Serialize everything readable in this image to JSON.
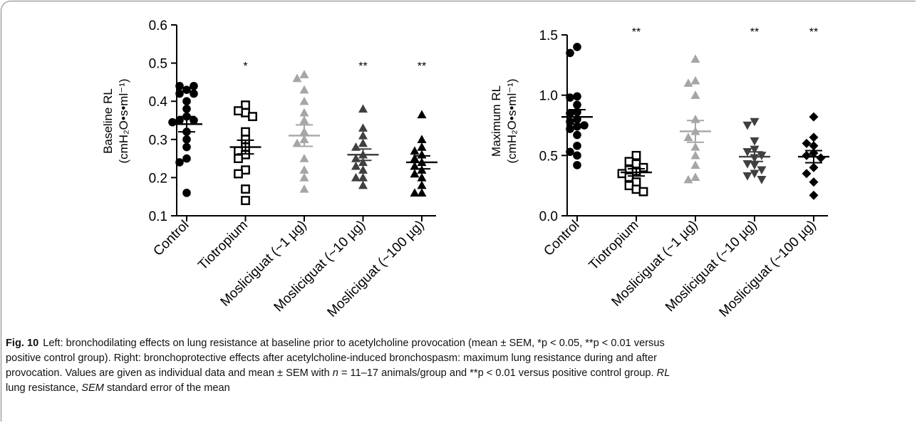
{
  "chart_data": [
    {
      "type": "scatter",
      "panel": "left",
      "ylabel_line1": "Baseline RL",
      "ylabel_line2": "(cmH₂O•s•ml⁻¹)",
      "ylim": [
        0.1,
        0.6
      ],
      "yticks": [
        "0.1",
        "0.2",
        "0.3",
        "0.4",
        "0.5",
        "0.6"
      ],
      "categories": [
        "Control",
        "Tiotropium",
        "Mosliciguat (~1 µg)",
        "Mosliciguat (~10 µg)",
        "Mosliciguat (~100 µg)"
      ],
      "series": [
        {
          "marker": "circle",
          "color": "#000000",
          "values": [
            0.43,
            0.44,
            0.44,
            0.42,
            0.42,
            0.4,
            0.38,
            0.36,
            0.35,
            0.35,
            0.345,
            0.32,
            0.3,
            0.28,
            0.25,
            0.24,
            0.16
          ],
          "mean": 0.34,
          "sem": 0.02,
          "significance": ""
        },
        {
          "marker": "square",
          "color": "#000000",
          "values": [
            0.39,
            0.37,
            0.375,
            0.36,
            0.32,
            0.3,
            0.28,
            0.27,
            0.26,
            0.25,
            0.22,
            0.21,
            0.17,
            0.14
          ],
          "mean": 0.28,
          "sem": 0.018,
          "significance": "*"
        },
        {
          "marker": "triangle-up",
          "color": "#a6a6a6",
          "values": [
            0.47,
            0.46,
            0.43,
            0.4,
            0.37,
            0.35,
            0.32,
            0.3,
            0.29,
            0.25,
            0.22,
            0.2,
            0.17
          ],
          "mean": 0.31,
          "sem": 0.028,
          "significance": ""
        },
        {
          "marker": "triangle-up",
          "color": "#404040",
          "values": [
            0.38,
            0.33,
            0.31,
            0.29,
            0.28,
            0.26,
            0.25,
            0.24,
            0.23,
            0.22,
            0.2,
            0.2,
            0.18
          ],
          "mean": 0.26,
          "sem": 0.015,
          "significance": "**"
        },
        {
          "marker": "triangle-up",
          "color": "#000000",
          "values": [
            0.365,
            0.3,
            0.28,
            0.27,
            0.26,
            0.25,
            0.24,
            0.23,
            0.22,
            0.21,
            0.2,
            0.18,
            0.16,
            0.16
          ],
          "mean": 0.24,
          "sem": 0.017,
          "significance": "**"
        }
      ]
    },
    {
      "type": "scatter",
      "panel": "right",
      "ylabel_line1": "Maximum RL",
      "ylabel_line2": "(cmH₂O•s•ml⁻¹)",
      "ylim": [
        0.0,
        1.5
      ],
      "yticks": [
        "0.0",
        "0.5",
        "1.0",
        "1.5"
      ],
      "categories": [
        "Control",
        "Tiotropium",
        "Mosliciguat (~1 µg)",
        "Mosliciguat (~10 µg)",
        "Mosliciguat (~100 µg)"
      ],
      "series": [
        {
          "marker": "circle",
          "color": "#000000",
          "values": [
            1.4,
            1.35,
            0.99,
            0.98,
            0.92,
            0.86,
            0.85,
            0.8,
            0.78,
            0.75,
            0.74,
            0.72,
            0.67,
            0.58,
            0.53,
            0.5,
            0.42
          ],
          "mean": 0.82,
          "sem": 0.06,
          "significance": ""
        },
        {
          "marker": "square",
          "color": "#000000",
          "values": [
            0.5,
            0.45,
            0.43,
            0.4,
            0.38,
            0.37,
            0.35,
            0.32,
            0.28,
            0.25,
            0.22,
            0.2
          ],
          "mean": 0.36,
          "sem": 0.03,
          "significance": "**"
        },
        {
          "marker": "triangle-up",
          "color": "#a6a6a6",
          "values": [
            1.3,
            1.12,
            1.1,
            1.0,
            0.8,
            0.7,
            0.65,
            0.57,
            0.5,
            0.42,
            0.32,
            0.3
          ],
          "mean": 0.7,
          "sem": 0.09,
          "significance": ""
        },
        {
          "marker": "triangle-down",
          "color": "#404040",
          "values": [
            0.78,
            0.75,
            0.62,
            0.55,
            0.53,
            0.5,
            0.48,
            0.43,
            0.42,
            0.38,
            0.35,
            0.33,
            0.3
          ],
          "mean": 0.49,
          "sem": 0.04,
          "significance": "**"
        },
        {
          "marker": "diamond",
          "color": "#000000",
          "values": [
            0.82,
            0.65,
            0.6,
            0.58,
            0.52,
            0.5,
            0.48,
            0.4,
            0.35,
            0.28,
            0.17
          ],
          "mean": 0.49,
          "sem": 0.05,
          "significance": "**"
        }
      ]
    }
  ],
  "caption": {
    "label": "Fig. 10",
    "line1": "Left: bronchodilating effects on lung resistance at baseline prior to acetylcholine provocation (mean ± SEM, *p < 0.05, **p < 0.01 versus",
    "line2": "positive control group). Right: bronchoprotective effects after acetylcholine-induced bronchospasm: maximum lung resistance during and after",
    "line3a": "provocation. Values are given as individual data and mean ± SEM with ",
    "n_symbol": "n",
    "line3b": " = 11–17 animals/group and **p < 0.01 versus positive control group. ",
    "rl_abbr": "RL",
    "line4a": "lung resistance, ",
    "sem_abbr": "SEM",
    "line4b": " standard error of the mean"
  }
}
